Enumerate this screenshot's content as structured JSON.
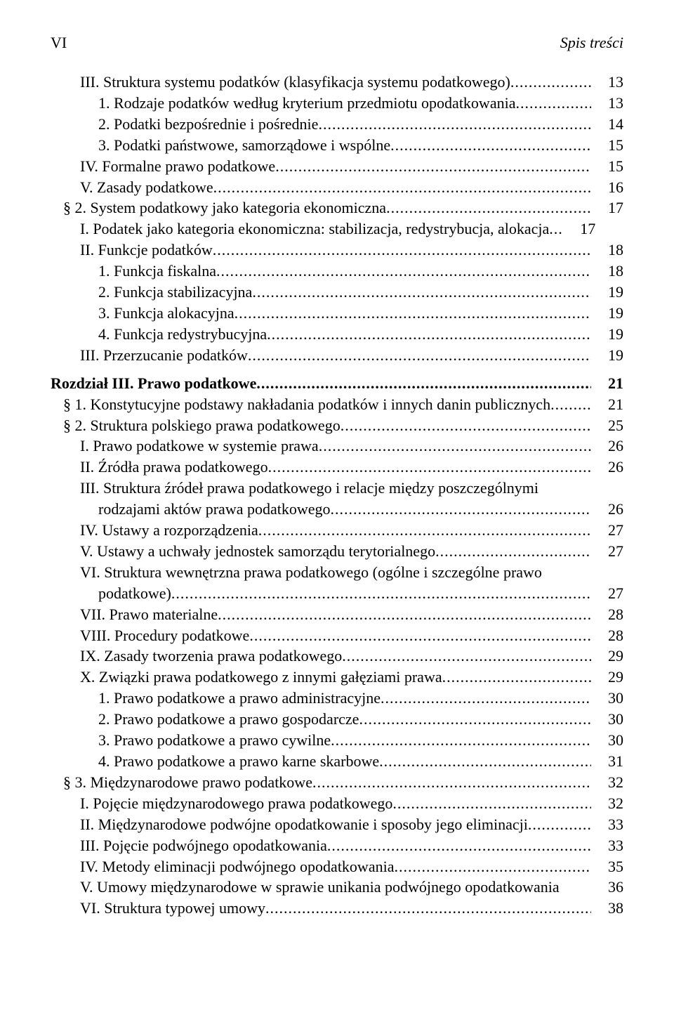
{
  "header": {
    "page_roman": "VI",
    "title": "Spis treści"
  },
  "entries": [
    {
      "indent": 2,
      "label": "III. Struktura systemu podatków (klasyfikacja systemu podatkowego)",
      "page": "13"
    },
    {
      "indent": 3,
      "label": "1. Rodzaje podatków według kryterium przedmiotu opodatkowania",
      "page": "13"
    },
    {
      "indent": 3,
      "label": "2. Podatki bezpośrednie i pośrednie",
      "page": "14"
    },
    {
      "indent": 3,
      "label": "3. Podatki państwowe, samorządowe i wspólne",
      "page": "15"
    },
    {
      "indent": 2,
      "label": "IV. Formalne prawo podatkowe",
      "page": "15"
    },
    {
      "indent": 2,
      "label": "V. Zasady podatkowe",
      "page": "16"
    },
    {
      "indent": 1,
      "label": "§ 2. System podatkowy jako kategoria ekonomiczna",
      "page": "17"
    },
    {
      "indent": 2,
      "label": "I. Podatek jako kategoria ekonomiczna: stabilizacja, redystrybucja, alokacja",
      "page": "17",
      "short_leader": true
    },
    {
      "indent": 2,
      "label": "II. Funkcje podatków",
      "page": "18"
    },
    {
      "indent": 3,
      "label": "1. Funkcja fiskalna",
      "page": "18"
    },
    {
      "indent": 3,
      "label": "2. Funkcja stabilizacyjna",
      "page": "19"
    },
    {
      "indent": 3,
      "label": "3. Funkcja alokacyjna",
      "page": "19"
    },
    {
      "indent": 3,
      "label": "4. Funkcja redystrybucyjna",
      "page": "19"
    },
    {
      "indent": 2,
      "label": "III. Przerzucanie podatków",
      "page": "19"
    },
    {
      "indent": 0,
      "label": "Rozdział III. Prawo podatkowe",
      "page": "21",
      "bold": true,
      "gap_before": true
    },
    {
      "indent": 1,
      "label": "§ 1. Konstytucyjne podstawy nakładania podatków i innych danin publicznych",
      "page": "21"
    },
    {
      "indent": 1,
      "label": "§ 2. Struktura polskiego prawa podatkowego",
      "page": "25"
    },
    {
      "indent": 2,
      "label": "I. Prawo podatkowe w systemie prawa",
      "page": "26"
    },
    {
      "indent": 2,
      "label": "II. Źródła prawa podatkowego",
      "page": "26"
    },
    {
      "indent": 2,
      "label": "III. Struktura źródeł prawa podatkowego i relacje między poszczególnymi",
      "page": "",
      "no_leader": true
    },
    {
      "indent": 3,
      "label": "rodzajami aktów prawa podatkowego",
      "page": "26",
      "cont": true
    },
    {
      "indent": 2,
      "label": "IV. Ustawy a rozporządzenia",
      "page": "27"
    },
    {
      "indent": 2,
      "label": "V. Ustawy a uchwały jednostek samorządu terytorialnego",
      "page": "27"
    },
    {
      "indent": 2,
      "label": "VI. Struktura wewnętrzna prawa podatkowego (ogólne i szczególne prawo",
      "page": "",
      "no_leader": true
    },
    {
      "indent": 3,
      "label": "podatkowe)",
      "page": "27",
      "cont": true
    },
    {
      "indent": 2,
      "label": "VII. Prawo materialne",
      "page": "28"
    },
    {
      "indent": 2,
      "label": "VIII. Procedury podatkowe",
      "page": "28"
    },
    {
      "indent": 2,
      "label": "IX. Zasady tworzenia prawa podatkowego",
      "page": "29"
    },
    {
      "indent": 2,
      "label": "X. Związki prawa podatkowego z innymi gałęziami prawa",
      "page": "29"
    },
    {
      "indent": 3,
      "label": "1. Prawo podatkowe a prawo administracyjne",
      "page": "30"
    },
    {
      "indent": 3,
      "label": "2. Prawo podatkowe a prawo gospodarcze",
      "page": "30"
    },
    {
      "indent": 3,
      "label": "3. Prawo podatkowe a prawo cywilne",
      "page": "30"
    },
    {
      "indent": 3,
      "label": "4. Prawo podatkowe a prawo karne skarbowe",
      "page": "31"
    },
    {
      "indent": 1,
      "label": "§ 3. Międzynarodowe prawo podatkowe",
      "page": "32"
    },
    {
      "indent": 2,
      "label": "I. Pojęcie międzynarodowego prawa podatkowego",
      "page": "32"
    },
    {
      "indent": 2,
      "label": "II. Międzynarodowe podwójne opodatkowanie i sposoby jego eliminacji",
      "page": "33"
    },
    {
      "indent": 2,
      "label": "III. Pojęcie podwójnego opodatkowania",
      "page": "33"
    },
    {
      "indent": 2,
      "label": "IV. Metody eliminacji podwójnego opodatkowania",
      "page": "35"
    },
    {
      "indent": 2,
      "label": "V. Umowy międzynarodowe w sprawie unikania podwójnego opodatkowania",
      "page": "36",
      "no_leader_space": true
    },
    {
      "indent": 2,
      "label": "VI. Struktura typowej umowy",
      "page": "38"
    }
  ]
}
